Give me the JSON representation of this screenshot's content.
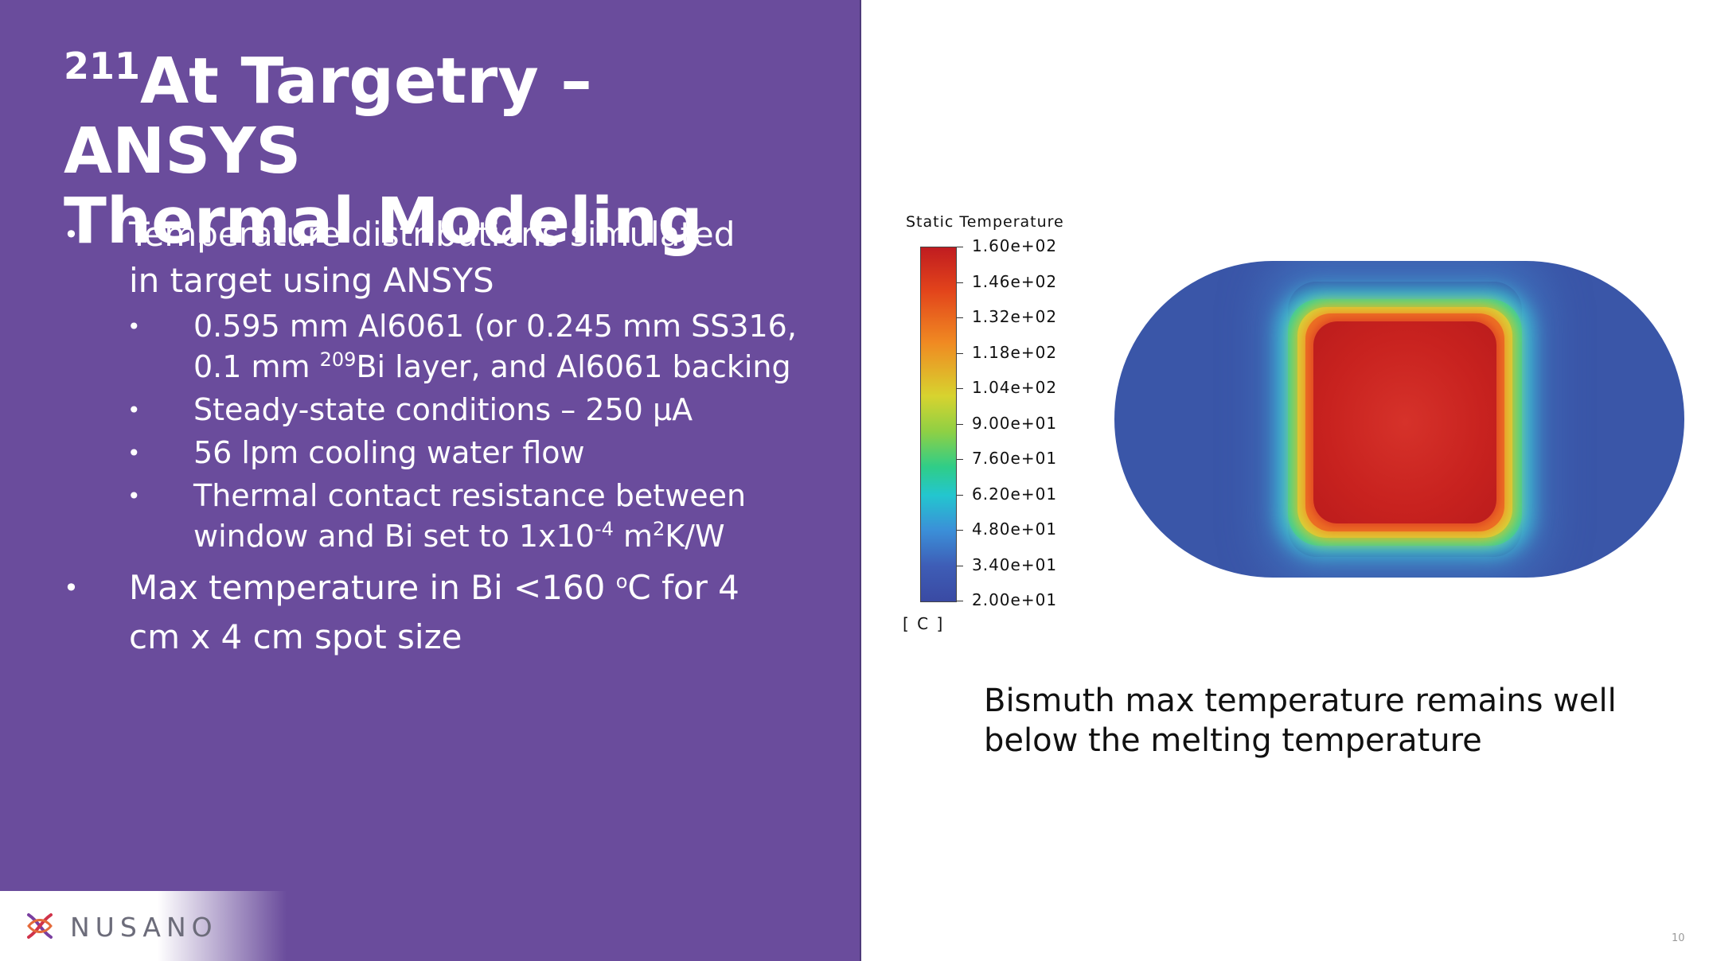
{
  "title": {
    "superscript": "211",
    "line1": "At Targetry – ANSYS",
    "line2": "Thermal Modeling"
  },
  "bullets": {
    "bullet_char": "•",
    "item1": {
      "line1": "Temperature distributions simulated",
      "line2": "in target using ANSYS"
    },
    "sub1": {
      "line1": "0.595 mm Al6061 (or 0.245 mm SS316,",
      "line2_pre": "0.1 mm ",
      "line2_sup": "209",
      "line2_post": "Bi layer, and Al6061 backing"
    },
    "sub2": {
      "text": "Steady-state conditions – 250 μA"
    },
    "sub3": {
      "text": "56 lpm cooling water flow"
    },
    "sub4": {
      "line1": "Thermal contact resistance between",
      "line2_pre": "window and Bi set to 1x10",
      "line2_sup": "-4",
      "line2_mid": " m",
      "line2_sup2": "2",
      "line2_post": "K/W"
    },
    "item2": {
      "line1_pre": "Max temperature in Bi <160 ",
      "line1_sup": "o",
      "line1_post": "C for 4",
      "line2": "cm x 4 cm spot size"
    }
  },
  "legend": {
    "title": "Static Temperature",
    "unit": "[ C ]",
    "ticks": [
      "1.60e+02",
      "1.46e+02",
      "1.32e+02",
      "1.18e+02",
      "1.04e+02",
      "9.00e+01",
      "7.60e+01",
      "6.20e+01",
      "4.80e+01",
      "3.40e+01",
      "2.00e+01"
    ],
    "colors": {
      "max": "#c01c20",
      "min": "#3a4aa3"
    }
  },
  "caption": {
    "line1": "Bismuth max temperature remains well",
    "line2": "below the melting temperature"
  },
  "logo": {
    "text": "NUSANO"
  },
  "page_number": "10",
  "colors": {
    "panel": "#6a4c9c",
    "text_on_panel": "#ffffff",
    "body_text": "#111111"
  }
}
